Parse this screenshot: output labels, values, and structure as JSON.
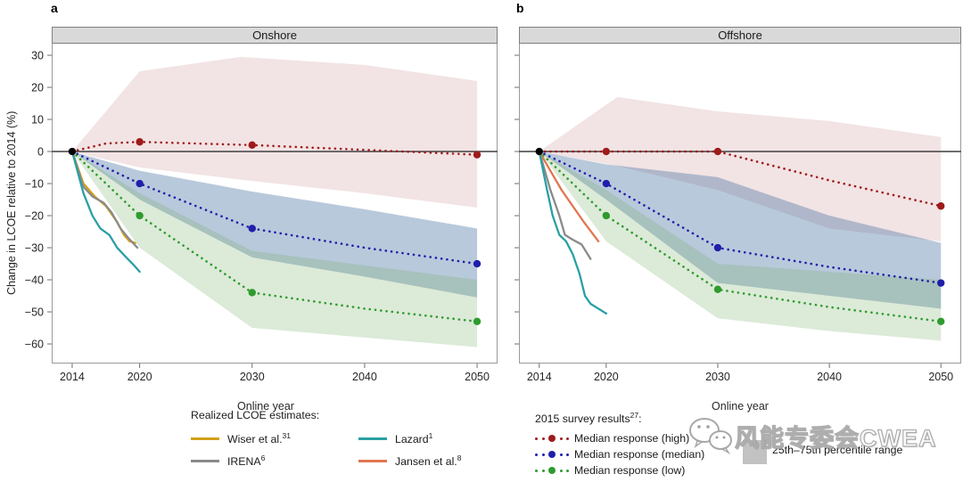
{
  "figure": {
    "panel_a_label": "a",
    "panel_b_label": "b",
    "ylabel": "Change in LCOE relative to 2014 (%)",
    "xlabel_a": "Online year",
    "xlabel_b": "Online year"
  },
  "legend_left": {
    "title": "Realized LCOE estimates:",
    "items": [
      {
        "label": "Wiser et al.",
        "sup": "31",
        "color": "#d4a017"
      },
      {
        "label": "IRENA",
        "sup": "6",
        "color": "#8a8a8a"
      },
      {
        "label": "Lazard",
        "sup": "1",
        "color": "#2aa0a4"
      },
      {
        "label": "Jansen et al.",
        "sup": "8",
        "color": "#e0764f"
      }
    ]
  },
  "legend_right": {
    "title": "2015 survey results",
    "title_sup": "27",
    "title_suffix": ":",
    "items": [
      {
        "label": "Median response (high)",
        "color": "#9e1b1b"
      },
      {
        "label": "Median response (median)",
        "color": "#1f1faa"
      },
      {
        "label": "Median response (low)",
        "color": "#2e9b2e"
      }
    ],
    "band_label": "25th–75th percentile range",
    "band_color": "#c2c2c2"
  },
  "watermark": {
    "text": "风能专委会CWEA"
  },
  "chart_data": [
    {
      "type": "line",
      "title": "Onshore",
      "xlabel": "Online year",
      "ylabel": "Change in LCOE relative to 2014 (%)",
      "xlim": [
        2012.18,
        2051.82
      ],
      "ylim": [
        -66.1,
        33.9
      ],
      "xticks": [
        2014,
        2020,
        2030,
        2040,
        2050
      ],
      "xtick_labels": [
        "2014",
        "2020",
        "2030",
        "2040",
        "2050"
      ],
      "yticks": [
        30,
        20,
        10,
        0,
        -10,
        -20,
        -30,
        -40,
        -50,
        -60
      ],
      "ytick_labels": [
        "30",
        "20",
        "10",
        "0",
        "−10",
        "−20",
        "−30",
        "−40",
        "−50",
        "−60"
      ],
      "bands": [
        {
          "name": "high-25th-75th-band",
          "fill": "rgba(165,55,62,0.14)",
          "x": [
            2014,
            2020,
            2029,
            2040,
            2050
          ],
          "upper": [
            0,
            25,
            29.5,
            27,
            22
          ],
          "lower": [
            0,
            -5,
            -8.8,
            -13,
            -17.5
          ]
        },
        {
          "name": "median-25th-75th-band",
          "fill": "rgba(58,105,155,0.36)",
          "x": [
            2014,
            2020,
            2030,
            2040,
            2050
          ],
          "upper": [
            0,
            -6,
            -12.5,
            -18,
            -24
          ],
          "lower": [
            0,
            -15,
            -33,
            -39,
            -45.5
          ]
        },
        {
          "name": "low-25th-75th-band",
          "fill": "rgba(115,170,100,0.25)",
          "x": [
            2014,
            2020,
            2030,
            2040,
            2050
          ],
          "upper": [
            0,
            -13,
            -31,
            -35.5,
            -40
          ],
          "lower": [
            0,
            -30,
            -55,
            -58,
            -61
          ]
        }
      ],
      "survey_series": [
        {
          "name": "Median response (high)",
          "color": "#9e1b1b",
          "x": [
            2014,
            2017,
            2020,
            2030,
            2040,
            2050
          ],
          "y": [
            0,
            2.5,
            3,
            2,
            0.5,
            -1
          ],
          "marker_x": [
            2020,
            2030,
            2050
          ],
          "marker_y": [
            3,
            2,
            -1
          ]
        },
        {
          "name": "Median response (median)",
          "color": "#1f1faa",
          "x": [
            2014,
            2020,
            2030,
            2040,
            2050
          ],
          "y": [
            0,
            -10,
            -24,
            -30,
            -35
          ],
          "marker_x": [
            2020,
            2030,
            2050
          ],
          "marker_y": [
            -10,
            -24,
            -35
          ]
        },
        {
          "name": "Median response (low)",
          "color": "#2e9b2e",
          "x": [
            2014,
            2020,
            2030,
            2040,
            2050
          ],
          "y": [
            0,
            -20,
            -44,
            -49,
            -53
          ],
          "marker_x": [
            2020,
            2030,
            2050
          ],
          "marker_y": [
            -20,
            -44,
            -53
          ]
        }
      ],
      "realized_series": [
        {
          "name": "Wiser et al.",
          "color": "#d4a017",
          "x": [
            2014,
            2015,
            2016,
            2017,
            2018,
            2018.6,
            2019.1,
            2019.6
          ],
          "y": [
            0,
            -10,
            -14,
            -17,
            -22,
            -26,
            -28,
            -28.5
          ]
        },
        {
          "name": "IRENA",
          "color": "#8a8a8a",
          "x": [
            2014,
            2015,
            2015.8,
            2016.8,
            2017.5,
            2018.3,
            2019,
            2019.8
          ],
          "y": [
            0,
            -11,
            -14,
            -16,
            -19,
            -24,
            -27,
            -30
          ]
        },
        {
          "name": "Lazard",
          "color": "#2aa0a4",
          "x": [
            2014,
            2015,
            2015.8,
            2016.5,
            2017.3,
            2018,
            2018.8,
            2019.5,
            2020
          ],
          "y": [
            0,
            -13,
            -20,
            -24,
            -26,
            -30,
            -33,
            -35.5,
            -37.5
          ]
        }
      ],
      "origin_marker": {
        "x": 2014,
        "y": 0,
        "color": "#000000"
      }
    },
    {
      "type": "line",
      "title": "Offshore",
      "xlabel": "Online year",
      "ylabel": "Change in LCOE relative to 2014 (%)",
      "xlim": [
        2012.18,
        2051.82
      ],
      "ylim": [
        -66.1,
        33.9
      ],
      "xticks": [
        2014,
        2020,
        2030,
        2040,
        2050
      ],
      "xtick_labels": [
        "2014",
        "2020",
        "2030",
        "2040",
        "2050"
      ],
      "yticks": [
        30,
        20,
        10,
        0,
        -10,
        -20,
        -30,
        -40,
        -50,
        -60
      ],
      "bands": [
        {
          "name": "high-25th-75th-band",
          "fill": "rgba(165,55,62,0.14)",
          "x": [
            2014,
            2021,
            2030,
            2040,
            2050
          ],
          "upper": [
            0,
            17,
            12.5,
            9.5,
            4.5
          ],
          "lower": [
            0,
            -4.5,
            -12,
            -24,
            -28
          ]
        },
        {
          "name": "median-25th-75th-band",
          "fill": "rgba(58,105,155,0.36)",
          "x": [
            2014,
            2020,
            2030,
            2040,
            2050
          ],
          "upper": [
            0,
            -4,
            -8,
            -20,
            -28.5
          ],
          "lower": [
            0,
            -15,
            -41,
            -45,
            -49
          ]
        },
        {
          "name": "low-25th-75th-band",
          "fill": "rgba(115,170,100,0.25)",
          "x": [
            2014,
            2020,
            2030,
            2040,
            2050
          ],
          "upper": [
            0,
            -12,
            -35,
            -37.5,
            -40
          ],
          "lower": [
            0,
            -28,
            -52,
            -56,
            -59
          ]
        }
      ],
      "survey_series": [
        {
          "name": "Median response (high)",
          "color": "#9e1b1b",
          "x": [
            2014,
            2020,
            2030,
            2040,
            2050
          ],
          "y": [
            0,
            0,
            0,
            -9,
            -17
          ],
          "marker_x": [
            2020,
            2030,
            2050
          ],
          "marker_y": [
            0,
            0,
            -17
          ]
        },
        {
          "name": "Median response (median)",
          "color": "#1f1faa",
          "x": [
            2014,
            2020,
            2030,
            2040,
            2050
          ],
          "y": [
            0,
            -10,
            -30,
            -36,
            -41
          ],
          "marker_x": [
            2020,
            2030,
            2050
          ],
          "marker_y": [
            -10,
            -30,
            -41
          ]
        },
        {
          "name": "Median response (low)",
          "color": "#2e9b2e",
          "x": [
            2014,
            2020,
            2030,
            2040,
            2050
          ],
          "y": [
            0,
            -20,
            -43,
            -48.5,
            -53
          ],
          "marker_x": [
            2020,
            2030,
            2050
          ],
          "marker_y": [
            -20,
            -43,
            -53
          ]
        }
      ],
      "realized_series": [
        {
          "name": "IRENA",
          "color": "#8a8a8a",
          "x": [
            2014,
            2015,
            2015.8,
            2016.3,
            2017,
            2017.8,
            2018.6
          ],
          "y": [
            0,
            -12,
            -20,
            -26,
            -27.5,
            -29,
            -33.5
          ]
        },
        {
          "name": "Jansen et al.",
          "color": "#e0764f",
          "x": [
            2014,
            2015,
            2016,
            2017,
            2018,
            2019.3
          ],
          "y": [
            0,
            -6,
            -12,
            -17,
            -22,
            -28
          ]
        },
        {
          "name": "Lazard",
          "color": "#2aa0a4",
          "x": [
            2014,
            2014.7,
            2015.2,
            2015.8,
            2016.4,
            2017,
            2017.6,
            2018.1,
            2018.6,
            2019.3,
            2020
          ],
          "y": [
            0,
            -12,
            -20,
            -26,
            -28,
            -32,
            -38,
            -45,
            -47.5,
            -49,
            -50.5
          ]
        }
      ],
      "origin_marker": {
        "x": 2014,
        "y": 0,
        "color": "#000000"
      }
    }
  ]
}
